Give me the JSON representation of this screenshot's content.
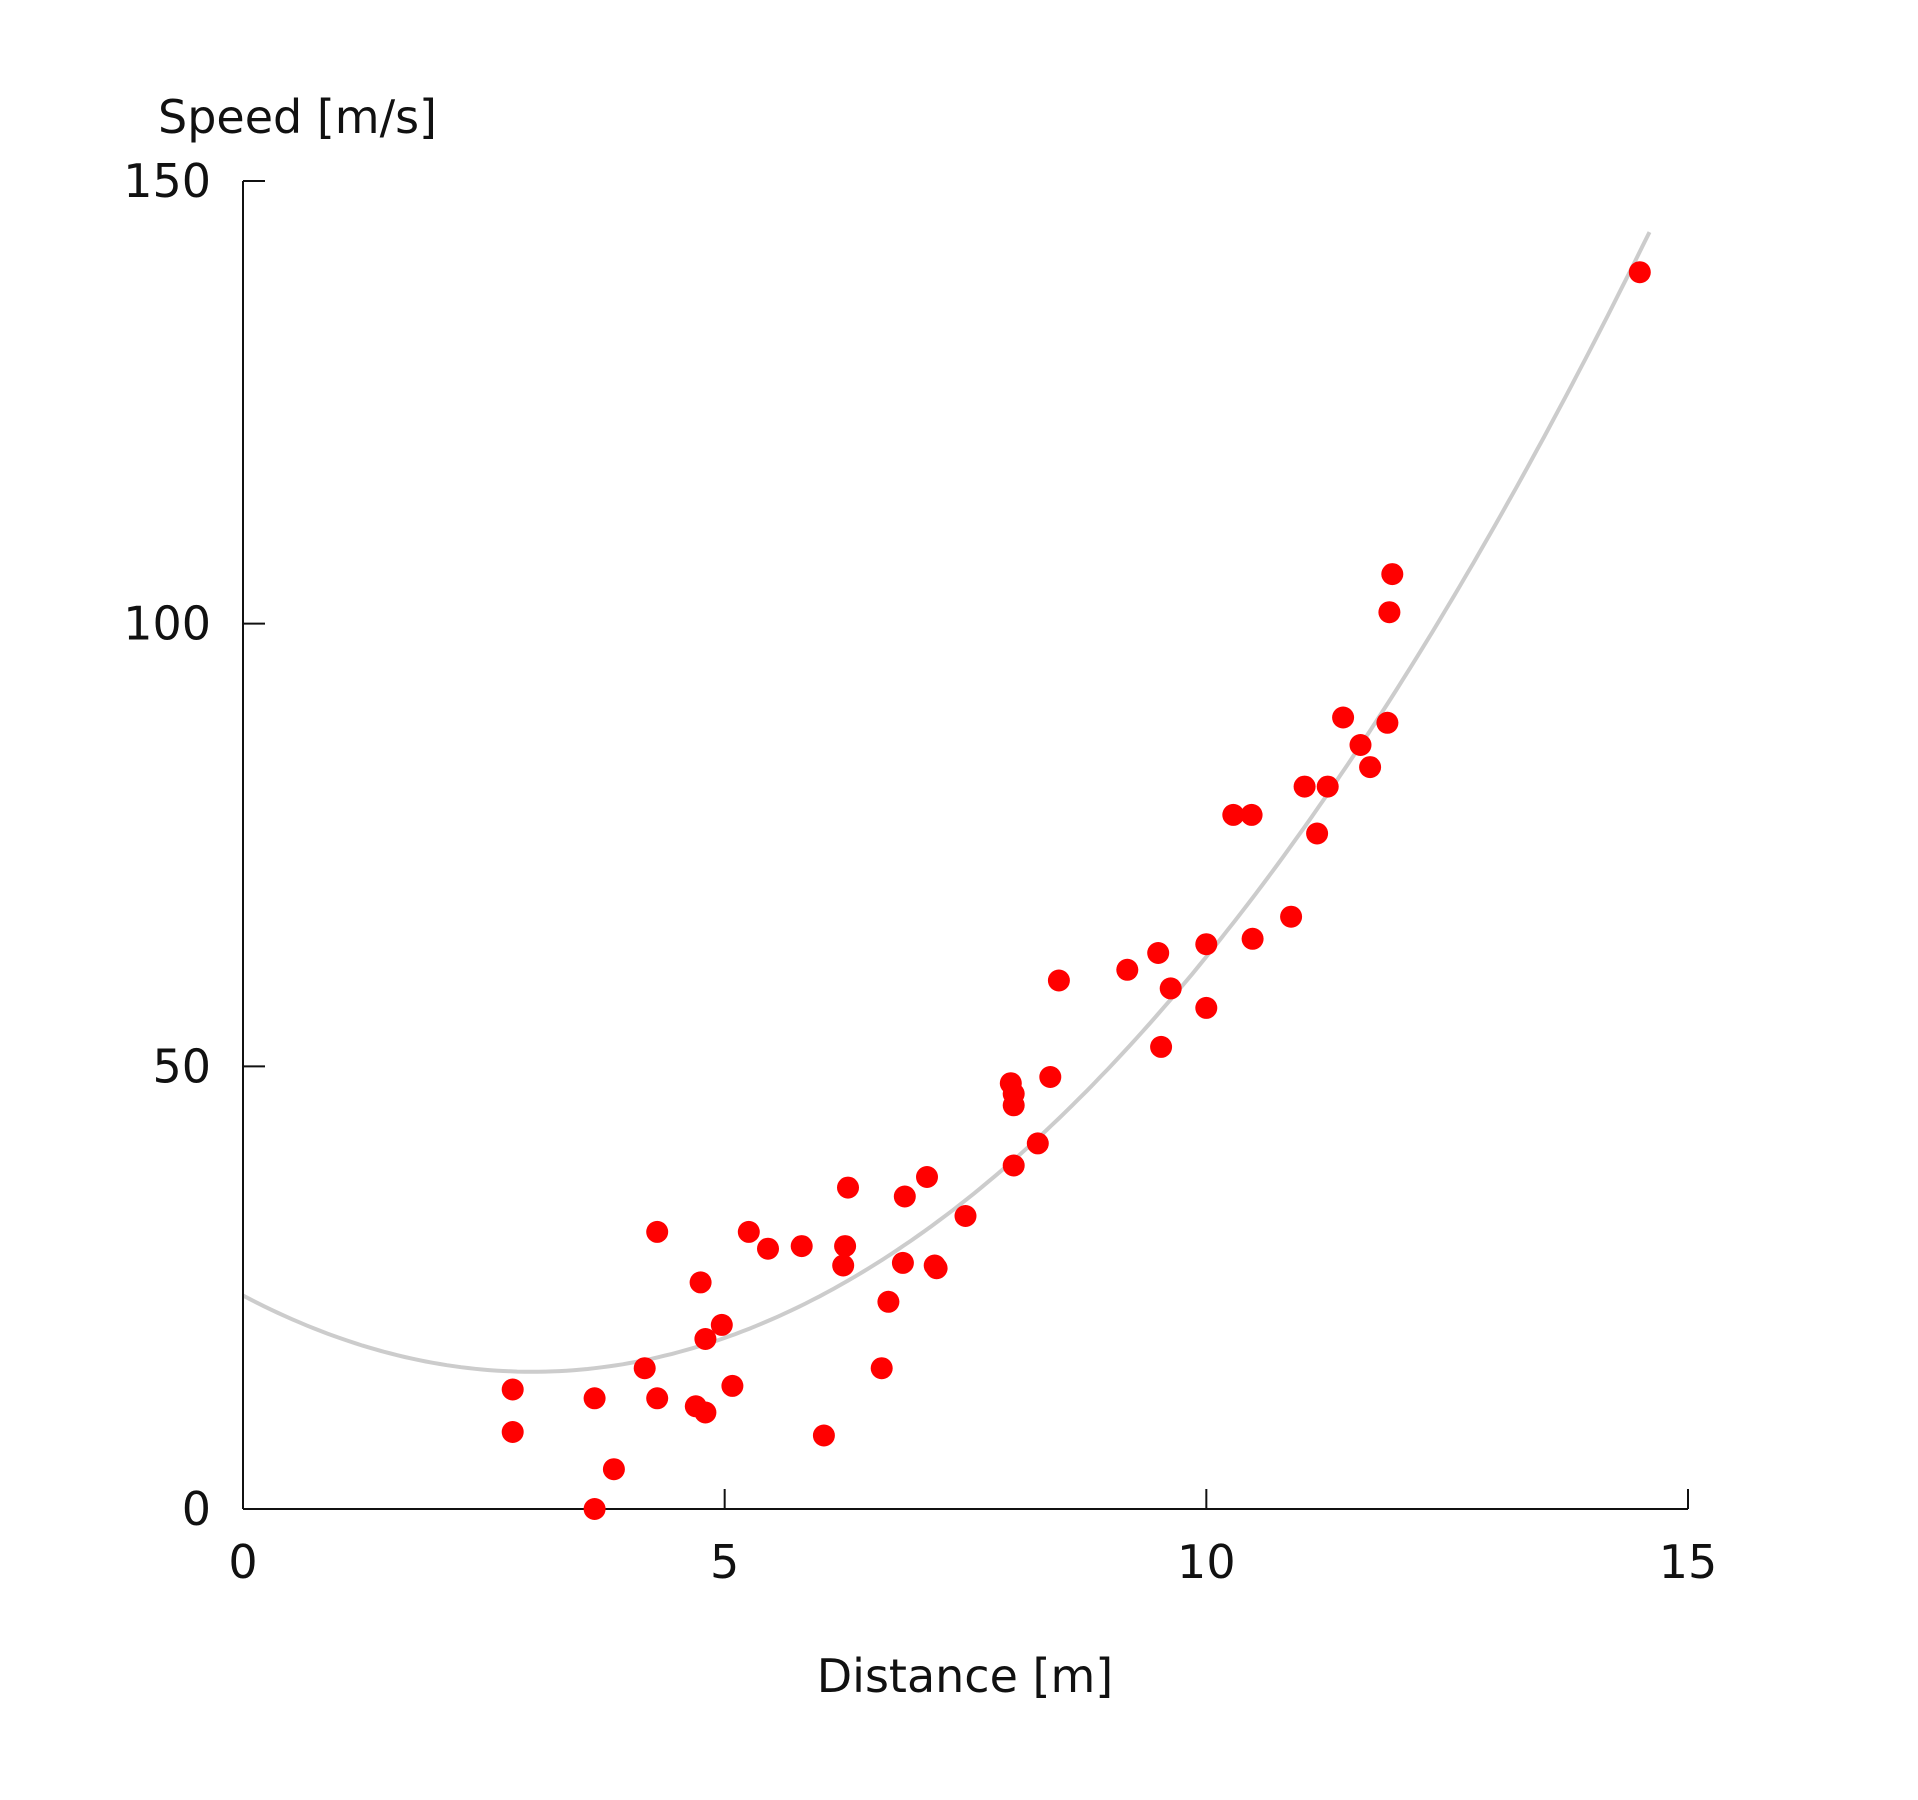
{
  "chart_data": {
    "type": "scatter",
    "title": "",
    "xlabel": "Distance [m]",
    "ylabel": "Speed [m/s]",
    "xlim": [
      0,
      15
    ],
    "ylim": [
      0,
      150
    ],
    "xticks": [
      "0",
      "5",
      "10",
      "15"
    ],
    "yticks": [
      "0",
      "50",
      "100",
      "150"
    ],
    "grid": false,
    "legend": "none",
    "colors": {
      "points": "#ff0000",
      "fit": "#cccccc",
      "axes": "#111111"
    },
    "series": [
      {
        "kind": "points",
        "points": [
          [
            2.8,
            13.5
          ],
          [
            2.8,
            8.7
          ],
          [
            3.65,
            12.5
          ],
          [
            3.65,
            0
          ],
          [
            3.85,
            4.5
          ],
          [
            4.17,
            15.9
          ],
          [
            4.3,
            31.3
          ],
          [
            4.3,
            12.5
          ],
          [
            4.7,
            11.6
          ],
          [
            4.75,
            25.6
          ],
          [
            4.8,
            19.2
          ],
          [
            4.8,
            10.9
          ],
          [
            4.97,
            20.8
          ],
          [
            5.08,
            13.9
          ],
          [
            5.25,
            31.3
          ],
          [
            5.45,
            29.4
          ],
          [
            5.8,
            29.7
          ],
          [
            6.03,
            8.3
          ],
          [
            6.23,
            27.5
          ],
          [
            6.25,
            29.7
          ],
          [
            6.28,
            36.3
          ],
          [
            6.63,
            15.9
          ],
          [
            6.7,
            23.4
          ],
          [
            6.85,
            27.8
          ],
          [
            6.87,
            35.3
          ],
          [
            7.1,
            37.5
          ],
          [
            7.18,
            27.5
          ],
          [
            7.2,
            27.2
          ],
          [
            7.5,
            33.1
          ],
          [
            7.97,
            48.1
          ],
          [
            8.0,
            46.9
          ],
          [
            8.0,
            45.6
          ],
          [
            8.0,
            38.8
          ],
          [
            8.25,
            41.3
          ],
          [
            8.38,
            48.8
          ],
          [
            8.47,
            59.7
          ],
          [
            9.18,
            60.9
          ],
          [
            9.5,
            62.8
          ],
          [
            9.53,
            52.2
          ],
          [
            9.63,
            58.8
          ],
          [
            10.0,
            56.6
          ],
          [
            10.0,
            63.8
          ],
          [
            10.28,
            78.4
          ],
          [
            10.47,
            78.4
          ],
          [
            10.48,
            64.4
          ],
          [
            10.88,
            66.9
          ],
          [
            11.02,
            81.6
          ],
          [
            11.15,
            76.3
          ],
          [
            11.26,
            81.6
          ],
          [
            11.42,
            89.4
          ],
          [
            11.6,
            86.3
          ],
          [
            11.7,
            83.8
          ],
          [
            11.88,
            88.8
          ],
          [
            11.9,
            101.3
          ],
          [
            11.93,
            105.6
          ],
          [
            14.5,
            139.7
          ]
        ]
      },
      {
        "kind": "fit",
        "model": "quadratic",
        "equation": "y = 0.9567*(x - 3)^2 + 15.5",
        "coefficients": {
          "a": 0.9567,
          "h": 3.0,
          "k": 15.5
        },
        "x_range": [
          0,
          14.6
        ]
      }
    ]
  }
}
